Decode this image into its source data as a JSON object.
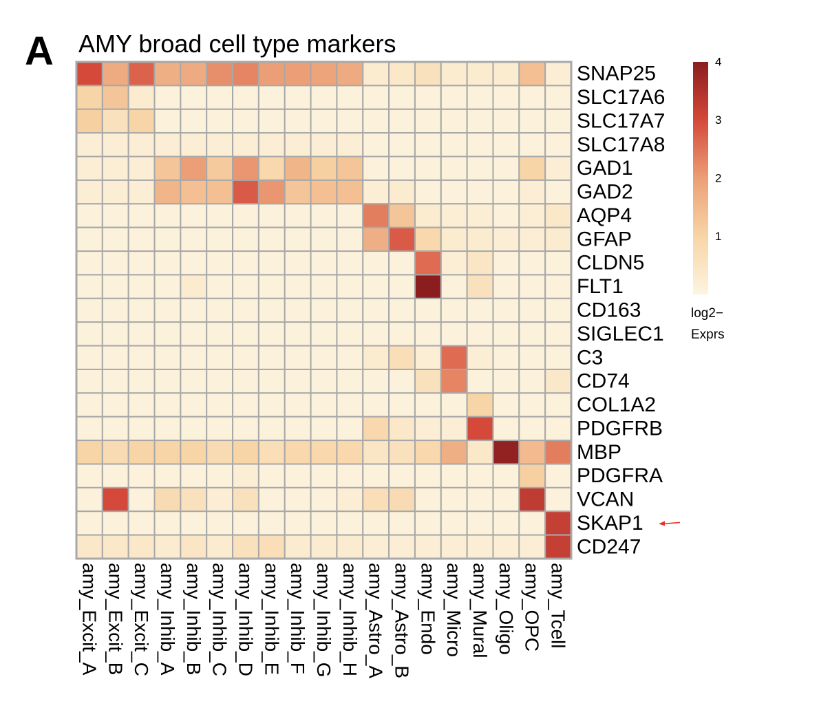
{
  "panel_letter": "A",
  "chart_data": {
    "type": "heatmap",
    "title": "AMY broad cell type markers",
    "rows": [
      "SNAP25",
      "SLC17A6",
      "SLC17A7",
      "SLC17A8",
      "GAD1",
      "GAD2",
      "AQP4",
      "GFAP",
      "CLDN5",
      "FLT1",
      "CD163",
      "SIGLEC1",
      "C3",
      "CD74",
      "COL1A2",
      "PDGFRB",
      "MBP",
      "PDGFRA",
      "VCAN",
      "SKAP1",
      "CD247"
    ],
    "columns": [
      "amy_Excit_A",
      "amy_Excit_B",
      "amy_Excit_C",
      "amy_Inhib_A",
      "amy_Inhib_B",
      "amy_Inhib_C",
      "amy_Inhib_D",
      "amy_Inhib_E",
      "amy_Inhib_F",
      "amy_Inhib_G",
      "amy_Inhib_H",
      "amy_Astro_A",
      "amy_Astro_B",
      "amy_Endo",
      "amy_Micro",
      "amy_Mural",
      "amy_Oligo",
      "amy_OPC",
      "amy_Tcell"
    ],
    "values": [
      [
        3.0,
        1.8,
        2.7,
        1.7,
        1.8,
        2.2,
        2.3,
        2.0,
        2.0,
        1.9,
        1.8,
        0.3,
        0.4,
        0.6,
        0.3,
        0.3,
        0.3,
        1.4,
        0.2
      ],
      [
        1.0,
        1.3,
        0.3,
        0.1,
        0.1,
        0.1,
        0.1,
        0.1,
        0.1,
        0.1,
        0.1,
        0.1,
        0.1,
        0.1,
        0.1,
        0.1,
        0.1,
        0.1,
        0.1
      ],
      [
        1.1,
        0.6,
        1.0,
        0.1,
        0.1,
        0.1,
        0.1,
        0.1,
        0.1,
        0.1,
        0.1,
        0.1,
        0.1,
        0.1,
        0.1,
        0.1,
        0.1,
        0.1,
        0.1
      ],
      [
        0.2,
        0.2,
        0.2,
        0.2,
        0.2,
        0.2,
        0.2,
        0.2,
        0.2,
        0.2,
        0.2,
        0.1,
        0.1,
        0.1,
        0.1,
        0.1,
        0.1,
        0.1,
        0.1
      ],
      [
        0.2,
        0.2,
        0.2,
        1.3,
        2.0,
        1.2,
        2.1,
        0.9,
        1.6,
        1.1,
        1.3,
        0.1,
        0.1,
        0.1,
        0.1,
        0.1,
        0.1,
        1.0,
        0.2
      ],
      [
        0.2,
        0.2,
        0.2,
        1.6,
        1.4,
        1.4,
        2.8,
        2.1,
        1.3,
        1.4,
        1.4,
        0.2,
        0.3,
        0.1,
        0.1,
        0.1,
        0.1,
        0.2,
        0.1
      ],
      [
        0.1,
        0.1,
        0.1,
        0.1,
        0.1,
        0.1,
        0.1,
        0.1,
        0.1,
        0.1,
        0.1,
        2.4,
        1.3,
        0.3,
        0.2,
        0.2,
        0.1,
        0.2,
        0.4
      ],
      [
        0.1,
        0.1,
        0.1,
        0.1,
        0.1,
        0.1,
        0.1,
        0.1,
        0.1,
        0.1,
        0.1,
        1.7,
        2.8,
        0.9,
        0.3,
        0.3,
        0.2,
        0.2,
        0.3
      ],
      [
        0.1,
        0.1,
        0.1,
        0.1,
        0.1,
        0.1,
        0.1,
        0.1,
        0.1,
        0.1,
        0.1,
        0.1,
        0.1,
        2.6,
        0.2,
        0.5,
        0.1,
        0.1,
        0.1
      ],
      [
        0.1,
        0.1,
        0.1,
        0.1,
        0.3,
        0.1,
        0.1,
        0.1,
        0.1,
        0.1,
        0.1,
        0.1,
        0.1,
        4.0,
        0.1,
        0.6,
        0.1,
        0.1,
        0.1
      ],
      [
        0.1,
        0.1,
        0.1,
        0.1,
        0.1,
        0.1,
        0.1,
        0.1,
        0.1,
        0.1,
        0.1,
        0.1,
        0.1,
        0.1,
        0.1,
        0.1,
        0.1,
        0.1,
        0.1
      ],
      [
        0.1,
        0.1,
        0.1,
        0.1,
        0.1,
        0.1,
        0.1,
        0.1,
        0.1,
        0.1,
        0.1,
        0.1,
        0.1,
        0.1,
        0.1,
        0.1,
        0.1,
        0.1,
        0.1
      ],
      [
        0.1,
        0.1,
        0.1,
        0.1,
        0.1,
        0.1,
        0.1,
        0.1,
        0.1,
        0.1,
        0.1,
        0.3,
        0.7,
        0.2,
        2.6,
        0.2,
        0.1,
        0.1,
        0.1
      ],
      [
        0.1,
        0.1,
        0.1,
        0.1,
        0.1,
        0.1,
        0.1,
        0.1,
        0.1,
        0.1,
        0.1,
        0.1,
        0.1,
        0.6,
        2.3,
        0.1,
        0.1,
        0.1,
        0.4
      ],
      [
        0.1,
        0.1,
        0.1,
        0.1,
        0.1,
        0.1,
        0.1,
        0.1,
        0.1,
        0.1,
        0.1,
        0.1,
        0.1,
        0.1,
        0.1,
        1.0,
        0.1,
        0.1,
        0.1
      ],
      [
        0.1,
        0.1,
        0.1,
        0.1,
        0.1,
        0.1,
        0.1,
        0.1,
        0.1,
        0.1,
        0.1,
        0.9,
        0.4,
        0.2,
        0.2,
        3.0,
        0.1,
        0.1,
        0.1
      ],
      [
        1.0,
        0.8,
        1.0,
        1.0,
        1.0,
        0.8,
        1.0,
        0.7,
        0.9,
        0.9,
        0.9,
        0.5,
        0.6,
        0.9,
        1.7,
        0.4,
        3.9,
        1.5,
        2.4
      ],
      [
        0.1,
        0.1,
        0.1,
        0.1,
        0.1,
        0.1,
        0.2,
        0.1,
        0.1,
        0.1,
        0.1,
        0.1,
        0.1,
        0.1,
        0.1,
        0.1,
        0.1,
        1.1,
        0.1
      ],
      [
        0.1,
        3.0,
        0.1,
        0.8,
        0.6,
        0.2,
        0.6,
        0.1,
        0.1,
        0.1,
        0.2,
        0.7,
        0.8,
        0.1,
        0.1,
        0.1,
        0.1,
        3.3,
        0.1
      ],
      [
        0.1,
        0.1,
        0.1,
        0.1,
        0.1,
        0.1,
        0.1,
        0.1,
        0.1,
        0.1,
        0.1,
        0.1,
        0.1,
        0.1,
        0.1,
        0.1,
        0.1,
        0.1,
        3.2
      ],
      [
        0.4,
        0.4,
        0.4,
        0.3,
        0.5,
        0.3,
        0.6,
        0.7,
        0.3,
        0.3,
        0.3,
        0.2,
        0.2,
        0.2,
        0.2,
        0.2,
        0.2,
        0.2,
        3.2
      ]
    ],
    "value_range": [
      0,
      4
    ],
    "colorbar": {
      "ticks": [
        "1",
        "2",
        "3",
        "4"
      ],
      "title_line1": "log2−",
      "title_line2": "Exprs",
      "colors": [
        "#fdf4e1",
        "#f7d5a6",
        "#ec9f76",
        "#d4493a",
        "#8b1d1e"
      ]
    },
    "grid_color": "#a8a8a8",
    "annotation": {
      "target_row": "SKAP1",
      "arrow_color": "#e8342c"
    }
  }
}
